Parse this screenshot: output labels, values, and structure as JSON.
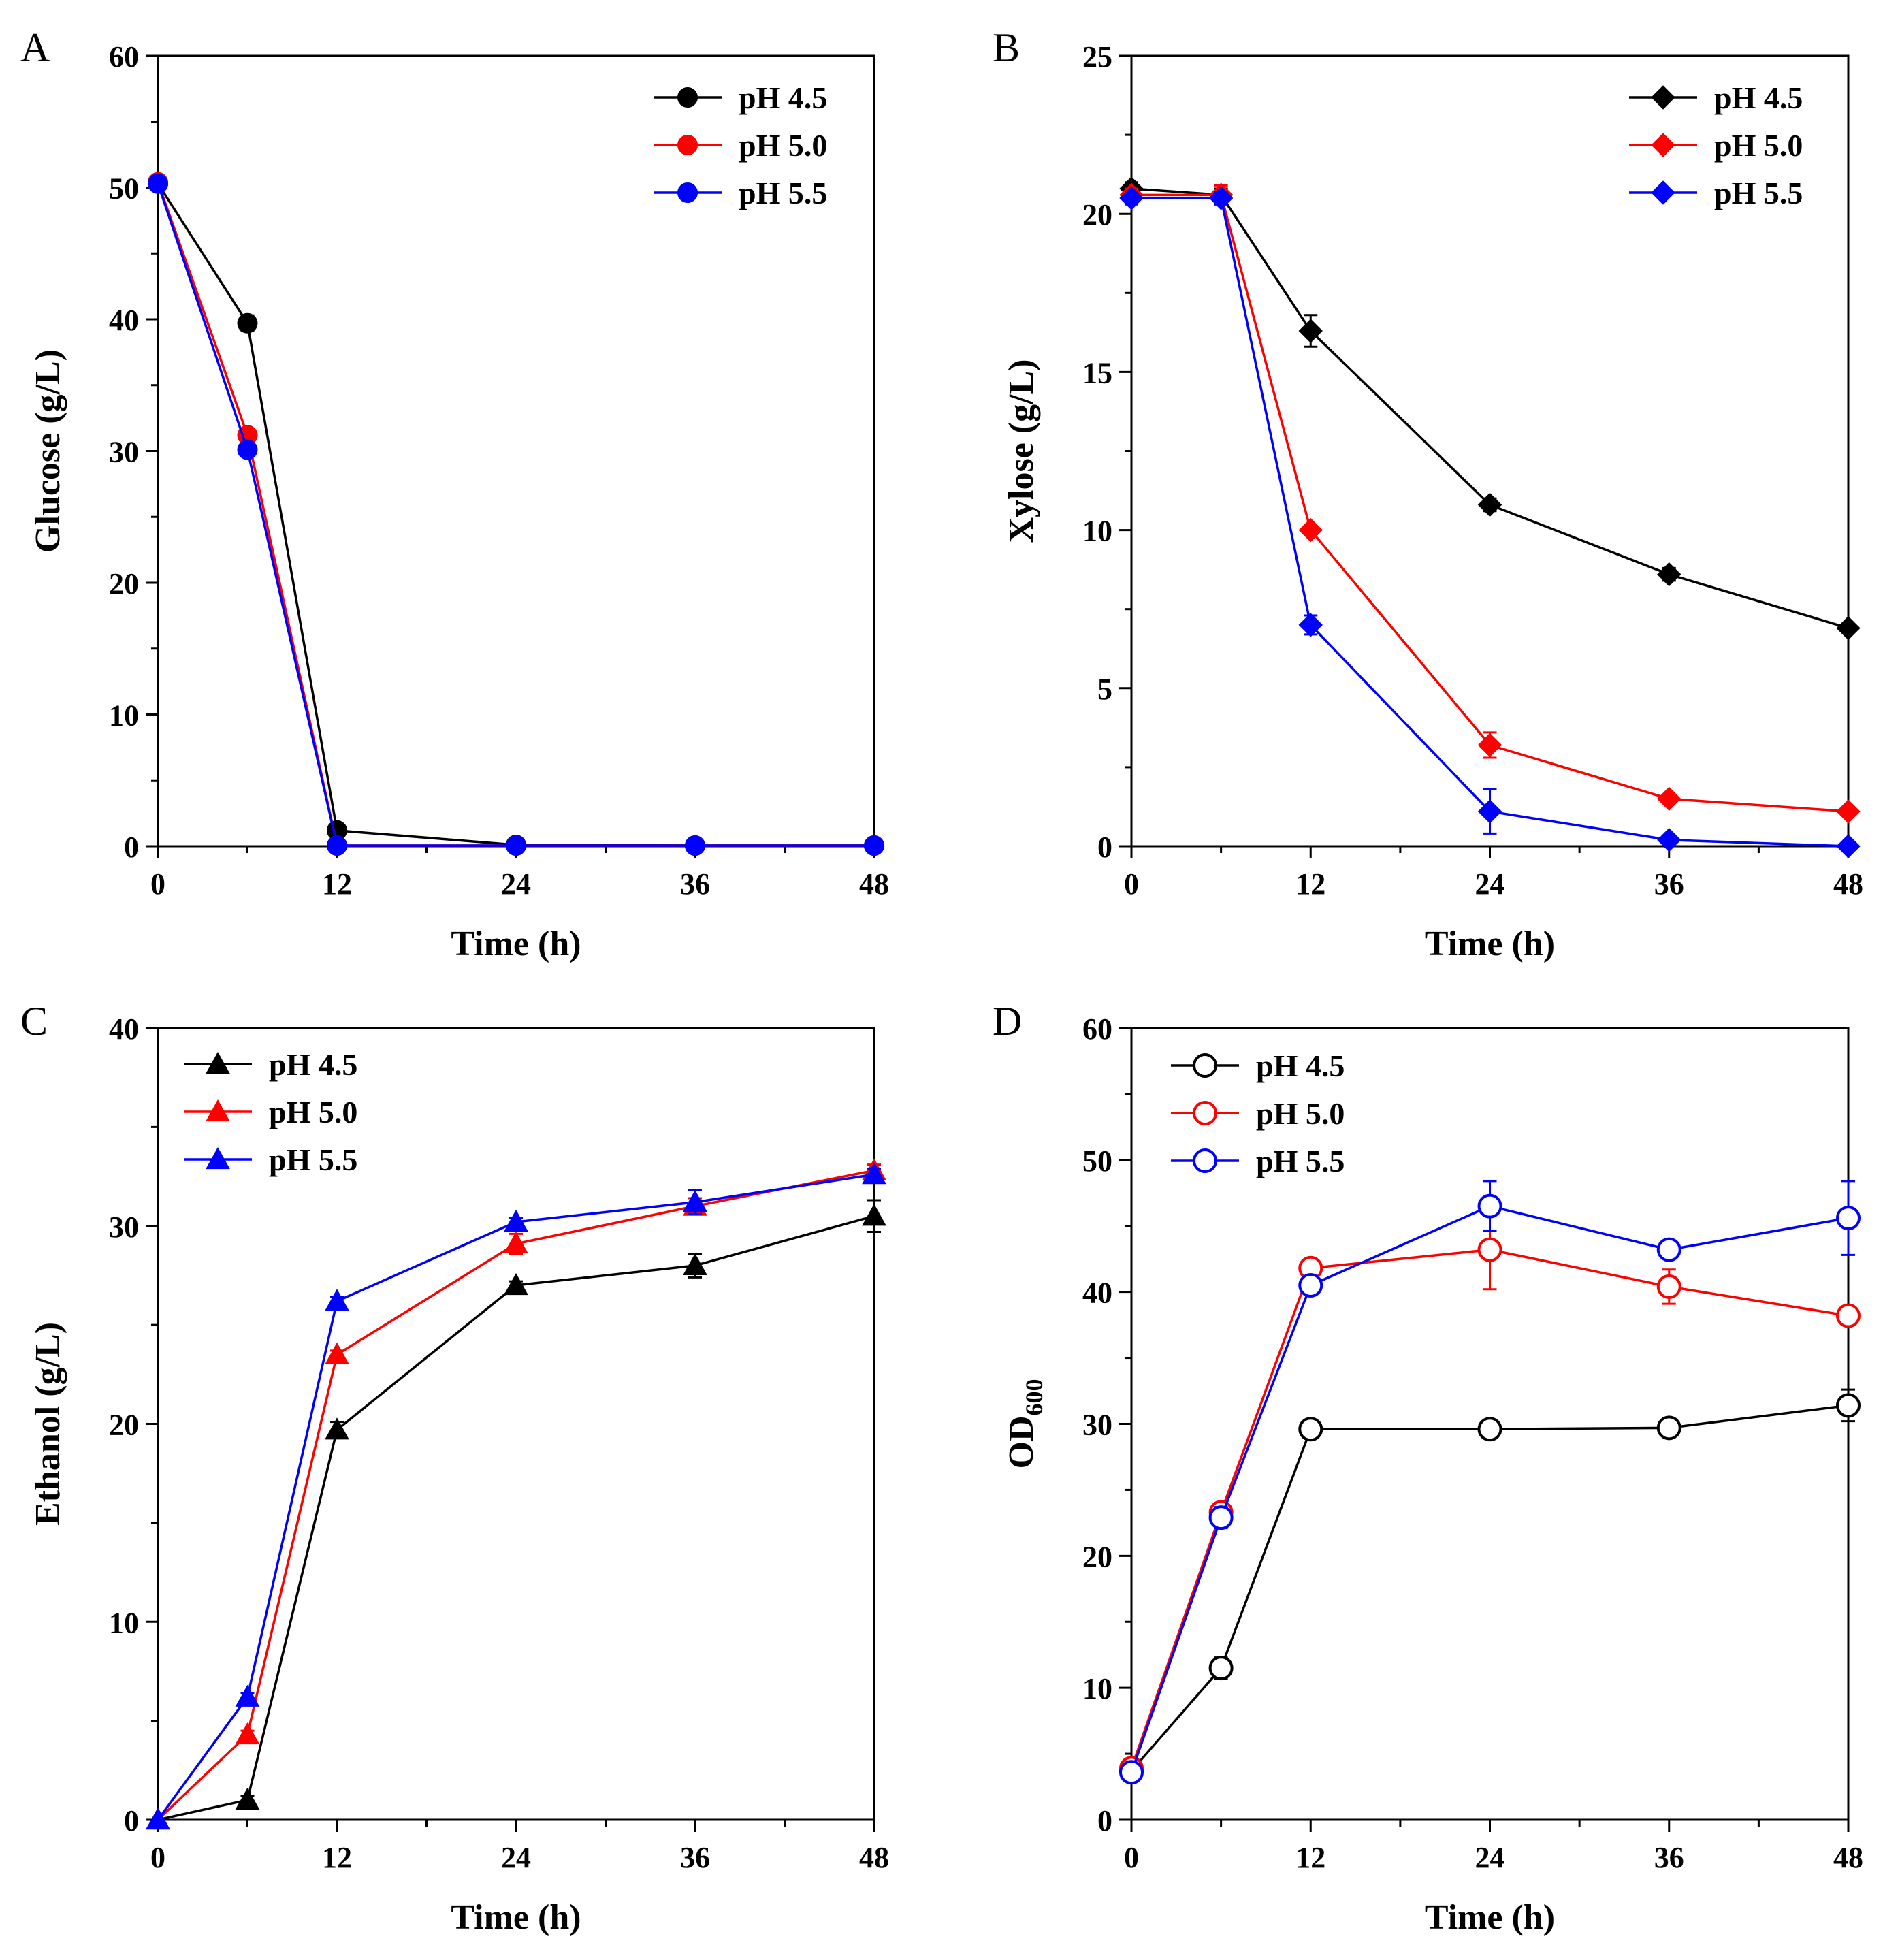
{
  "chart_data": [
    {
      "type": "line",
      "panel": "A",
      "title": "",
      "xlabel": "Time (h)",
      "ylabel": "Glucose (g/L)",
      "ylabel_sub": "",
      "xlim": [
        0,
        48
      ],
      "ylim": [
        0,
        60
      ],
      "xticks": [
        0,
        12,
        24,
        36,
        48
      ],
      "yticks": [
        0,
        10,
        20,
        30,
        40,
        50,
        60
      ],
      "x": [
        0,
        6,
        12,
        24,
        36,
        48
      ],
      "marker": "circle",
      "legend_position": "top-right",
      "series": [
        {
          "name": "pH 4.5",
          "color": "#000000",
          "values": [
            50.3,
            39.7,
            1.2,
            0.1,
            0.05,
            0.05
          ],
          "errors": [
            0.3,
            0.6,
            0.2,
            0,
            0,
            0
          ]
        },
        {
          "name": "pH 5.0",
          "color": "#ff0000",
          "values": [
            50.4,
            31.2,
            0.05,
            0.05,
            0.05,
            0.05
          ],
          "errors": [
            0.3,
            0.4,
            0,
            0,
            0,
            0
          ]
        },
        {
          "name": "pH 5.5",
          "color": "#0000ff",
          "values": [
            50.3,
            30.1,
            0.05,
            0.05,
            0.05,
            0.05
          ],
          "errors": [
            0.3,
            0.4,
            0,
            0,
            0,
            0
          ]
        }
      ]
    },
    {
      "type": "line",
      "panel": "B",
      "title": "",
      "xlabel": "Time (h)",
      "ylabel": "Xylose (g/L)",
      "ylabel_sub": "",
      "xlim": [
        0,
        48
      ],
      "ylim": [
        0,
        25
      ],
      "xticks": [
        0,
        12,
        24,
        36,
        48
      ],
      "yticks": [
        0,
        5,
        10,
        15,
        20,
        25
      ],
      "x": [
        0,
        6,
        12,
        24,
        36,
        48
      ],
      "marker": "diamond",
      "legend_position": "top-right",
      "series": [
        {
          "name": "pH 4.5",
          "color": "#000000",
          "values": [
            20.8,
            20.6,
            16.3,
            10.8,
            8.6,
            6.9
          ],
          "errors": [
            0.2,
            0.2,
            0.5,
            0.2,
            0.2,
            0.1
          ]
        },
        {
          "name": "pH 5.0",
          "color": "#ff0000",
          "values": [
            20.6,
            20.6,
            10.0,
            3.2,
            1.5,
            1.1
          ],
          "errors": [
            0.2,
            0.3,
            0.1,
            0.4,
            0.1,
            0.1
          ]
        },
        {
          "name": "pH 5.5",
          "color": "#0000ff",
          "values": [
            20.5,
            20.5,
            7.0,
            1.1,
            0.2,
            0.0
          ],
          "errors": [
            0.2,
            0.2,
            0.3,
            0.7,
            0.1,
            0.05
          ]
        }
      ]
    },
    {
      "type": "line",
      "panel": "C",
      "title": "",
      "xlabel": "Time (h)",
      "ylabel": "Ethanol (g/L)",
      "ylabel_sub": "",
      "xlim": [
        0,
        48
      ],
      "ylim": [
        0,
        40
      ],
      "xticks": [
        0,
        12,
        24,
        36,
        48
      ],
      "yticks": [
        0,
        10,
        20,
        30,
        40
      ],
      "x": [
        0,
        6,
        12,
        24,
        36,
        48
      ],
      "marker": "triangle",
      "legend_position": "top-left",
      "series": [
        {
          "name": "pH 4.5",
          "color": "#000000",
          "values": [
            0.0,
            1.0,
            19.7,
            27.0,
            28.0,
            30.5
          ],
          "errors": [
            0,
            0.2,
            0.4,
            0.2,
            0.6,
            0.8
          ]
        },
        {
          "name": "pH 5.0",
          "color": "#ff0000",
          "values": [
            0.0,
            4.3,
            23.5,
            29.1,
            31.0,
            32.8
          ],
          "errors": [
            0,
            0.2,
            0.2,
            0.5,
            0.4,
            0.3
          ]
        },
        {
          "name": "pH 5.5",
          "color": "#0000ff",
          "values": [
            0.0,
            6.2,
            26.2,
            30.2,
            31.2,
            32.6
          ],
          "errors": [
            0,
            0.2,
            0.2,
            0.2,
            0.6,
            0.3
          ]
        }
      ]
    },
    {
      "type": "line",
      "panel": "D",
      "title": "",
      "xlabel": "Time (h)",
      "ylabel": "OD",
      "ylabel_sub": "600",
      "xlim": [
        0,
        48
      ],
      "ylim": [
        0,
        60
      ],
      "xticks": [
        0,
        12,
        24,
        36,
        48
      ],
      "yticks": [
        0,
        10,
        20,
        30,
        40,
        50,
        60
      ],
      "x": [
        0,
        6,
        12,
        24,
        36,
        48
      ],
      "marker": "open-circle",
      "legend_position": "top-left",
      "series": [
        {
          "name": "pH 4.5",
          "color": "#000000",
          "values": [
            3.7,
            11.5,
            29.6,
            29.6,
            29.7,
            31.4
          ],
          "errors": [
            0.3,
            0.8,
            0.2,
            0.2,
            0.2,
            1.2
          ]
        },
        {
          "name": "pH 5.0",
          "color": "#ff0000",
          "values": [
            3.9,
            23.3,
            41.8,
            43.2,
            40.4,
            38.2
          ],
          "errors": [
            0.3,
            0.3,
            0.7,
            3.0,
            1.3,
            0.3
          ]
        },
        {
          "name": "pH 5.5",
          "color": "#0000ff",
          "values": [
            3.6,
            22.9,
            40.5,
            46.5,
            43.2,
            45.6
          ],
          "errors": [
            0.3,
            0.8,
            0.4,
            1.9,
            0.4,
            2.8
          ]
        }
      ]
    }
  ]
}
